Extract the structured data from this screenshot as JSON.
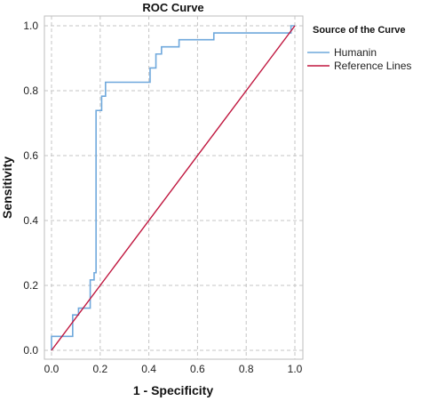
{
  "chart_data": {
    "type": "line",
    "title": "ROC Curve",
    "xlabel": "1 - Specificity",
    "ylabel": "Sensitivity",
    "xlim": [
      0,
      1
    ],
    "ylim": [
      0,
      1
    ],
    "x_ticks": [
      "0.0",
      "0.2",
      "0.4",
      "0.6",
      "0.8",
      "1.0"
    ],
    "y_ticks": [
      "0.0",
      "0.2",
      "0.4",
      "0.6",
      "0.8",
      "1.0"
    ],
    "grid": true,
    "legend": {
      "title": "Source of the Curve",
      "placement": "top-right"
    },
    "series": [
      {
        "name": "Humanin",
        "color": "#6fa8dc",
        "points": [
          [
            0.0,
            0.0
          ],
          [
            0.0,
            0.043
          ],
          [
            0.087,
            0.043
          ],
          [
            0.087,
            0.109
          ],
          [
            0.111,
            0.109
          ],
          [
            0.111,
            0.13
          ],
          [
            0.159,
            0.13
          ],
          [
            0.159,
            0.217
          ],
          [
            0.175,
            0.217
          ],
          [
            0.175,
            0.239
          ],
          [
            0.183,
            0.239
          ],
          [
            0.183,
            0.739
          ],
          [
            0.206,
            0.739
          ],
          [
            0.206,
            0.783
          ],
          [
            0.222,
            0.783
          ],
          [
            0.222,
            0.826
          ],
          [
            0.405,
            0.826
          ],
          [
            0.405,
            0.87
          ],
          [
            0.429,
            0.87
          ],
          [
            0.429,
            0.913
          ],
          [
            0.452,
            0.913
          ],
          [
            0.452,
            0.935
          ],
          [
            0.524,
            0.935
          ],
          [
            0.524,
            0.957
          ],
          [
            0.667,
            0.957
          ],
          [
            0.667,
            0.978
          ],
          [
            0.984,
            0.978
          ],
          [
            0.984,
            1.0
          ],
          [
            1.0,
            1.0
          ]
        ]
      },
      {
        "name": "Reference Lines",
        "color": "#c0173f",
        "points": [
          [
            0.0,
            0.0
          ],
          [
            1.0,
            1.0
          ]
        ]
      }
    ]
  }
}
